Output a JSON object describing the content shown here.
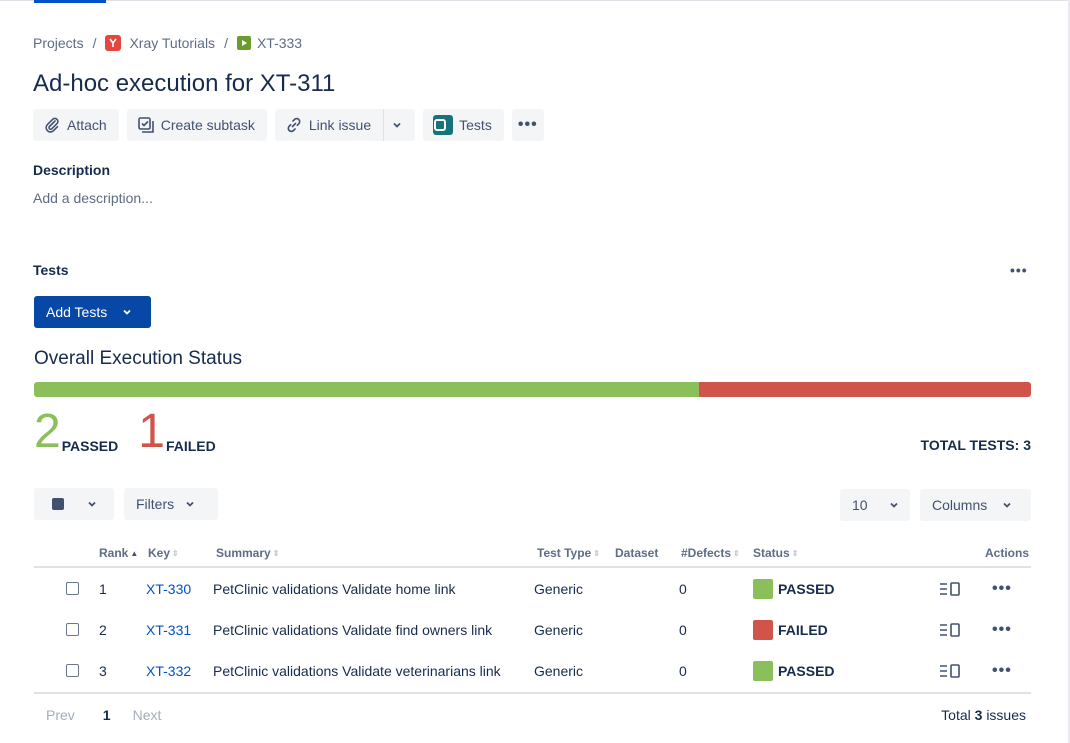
{
  "breadcrumb": {
    "projects": "Projects",
    "project": "Xray Tutorials",
    "issue": "XT-333",
    "separator": "/"
  },
  "issue_title": "Ad-hoc execution for XT-311",
  "toolbar": {
    "attach": "Attach",
    "create_subtask": "Create subtask",
    "link_issue": "Link issue",
    "tests": "Tests",
    "more": "•••"
  },
  "description": {
    "label": "Description",
    "placeholder": "Add a description..."
  },
  "tests_section": {
    "label": "Tests",
    "more": "•••",
    "add_tests": "Add Tests"
  },
  "overall": {
    "title": "Overall Execution Status",
    "passed_count": "2",
    "passed_label": "PASSED",
    "failed_count": "1",
    "failed_label": "FAILED",
    "total_label": "TOTAL TESTS: 3",
    "passed_fraction": 0.667,
    "failed_fraction": 0.333,
    "passed_color": "#8bbf5b",
    "failed_color": "#d1544a"
  },
  "controls": {
    "filters": "Filters",
    "page_size": "10",
    "columns": "Columns"
  },
  "table": {
    "headers": {
      "rank": "Rank",
      "key": "Key",
      "summary": "Summary",
      "test_type": "Test Type",
      "dataset": "Dataset",
      "defects": "#Defects",
      "status": "Status",
      "actions": "Actions"
    },
    "rows": [
      {
        "rank": "1",
        "key": "XT-330",
        "summary": "PetClinic validations Validate home link",
        "test_type": "Generic",
        "defects": "0",
        "status": "PASSED",
        "status_color": "#8bbf5b"
      },
      {
        "rank": "2",
        "key": "XT-331",
        "summary": "PetClinic validations Validate find owners link",
        "test_type": "Generic",
        "defects": "0",
        "status": "FAILED",
        "status_color": "#d1544a"
      },
      {
        "rank": "3",
        "key": "XT-332",
        "summary": "PetClinic validations Validate veterinarians link",
        "test_type": "Generic",
        "defects": "0",
        "status": "PASSED",
        "status_color": "#8bbf5b"
      }
    ],
    "actions_more": "•••"
  },
  "pager": {
    "prev": "Prev",
    "current": "1",
    "next": "Next",
    "total_prefix": "Total",
    "total_count": "3",
    "total_suffix": "issues"
  }
}
